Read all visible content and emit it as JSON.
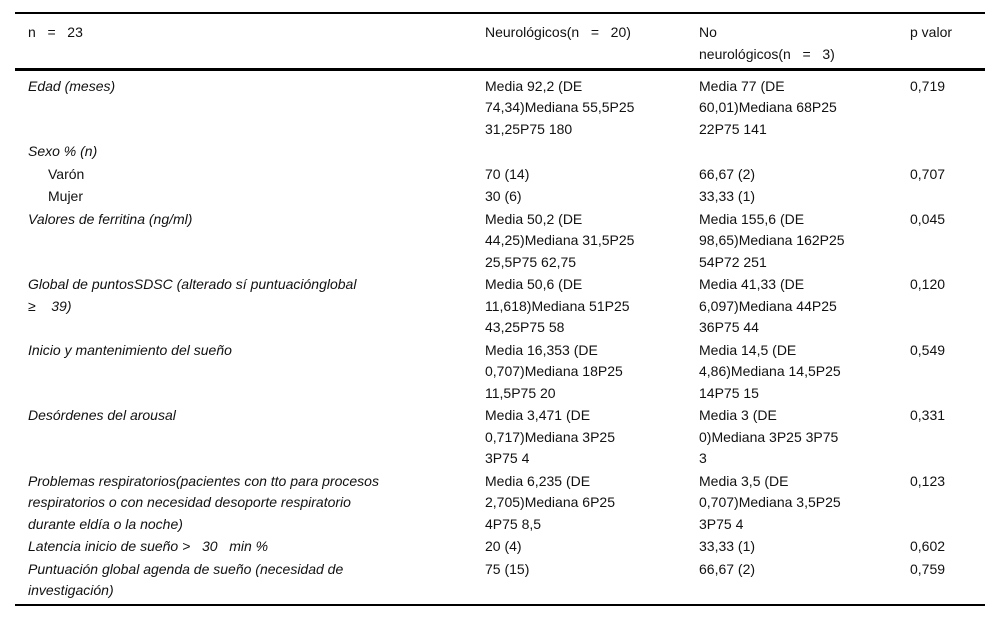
{
  "table": {
    "header": {
      "col1": "n   =   23",
      "col2": "Neurológicos(n   =   20)",
      "col3": "No\nneurológicos(n   =   3)",
      "col4": "p valor"
    },
    "rows": [
      {
        "label": "Edad (meses)",
        "indent": false,
        "neuro": "Media 92,2 (DE\n74,34)Mediana 55,5P25\n31,25P75 180",
        "no_neuro": "Media 77 (DE\n60,01)Mediana 68P25\n22P75 141",
        "p": "0,719"
      },
      {
        "label": "Sexo % (n)",
        "indent": false,
        "neuro": "",
        "no_neuro": "",
        "p": ""
      },
      {
        "label": "Varón",
        "indent": true,
        "neuro": "70 (14)",
        "no_neuro": "66,67 (2)",
        "p": "0,707"
      },
      {
        "label": "Mujer",
        "indent": true,
        "neuro": "30 (6)",
        "no_neuro": "33,33 (1)",
        "p": ""
      },
      {
        "label": "Valores de ferritina (ng/ml)",
        "indent": false,
        "neuro": "Media 50,2 (DE\n44,25)Mediana 31,5P25\n25,5P75 62,75",
        "no_neuro": "Media 155,6 (DE\n98,65)Mediana 162P25\n54P72 251",
        "p": "0,045"
      },
      {
        "label": "Global de puntosSDSC (alterado sí puntuaciónglobal\n≥    39)",
        "indent": false,
        "neuro": "Media 50,6 (DE\n11,618)Mediana 51P25\n43,25P75 58",
        "no_neuro": "Media 41,33 (DE\n6,097)Mediana 44P25\n36P75 44",
        "p": "0,120"
      },
      {
        "label": "Inicio y mantenimiento del sueño",
        "indent": false,
        "neuro": "Media 16,353 (DE\n0,707)Mediana 18P25\n11,5P75 20",
        "no_neuro": "Media 14,5 (DE\n4,86)Mediana 14,5P25\n14P75 15",
        "p": "0,549"
      },
      {
        "label": "Desórdenes del arousal",
        "indent": false,
        "neuro": "Media 3,471 (DE\n0,717)Mediana 3P25\n3P75 4",
        "no_neuro": "Media 3 (DE\n0)Mediana 3P25 3P75\n3",
        "p": "0,331"
      },
      {
        "label": "Problemas respiratorios(pacientes con tto para procesos\nrespiratorios o con necesidad desoporte respiratorio\ndurante eldía o la noche)",
        "indent": false,
        "neuro": "Media 6,235 (DE\n2,705)Mediana 6P25\n4P75 8,5",
        "no_neuro": "Media 3,5 (DE\n0,707)Mediana 3,5P25\n3P75 4",
        "p": "0,123"
      },
      {
        "label": "Latencia inicio de sueño >   30   min %",
        "indent": false,
        "neuro": "20 (4)",
        "no_neuro": "33,33 (1)",
        "p": "0,602"
      },
      {
        "label": "Puntuación global agenda de sueño (necesidad de\ninvestigación)",
        "indent": false,
        "neuro": "75 (15)",
        "no_neuro": "66,67 (2)",
        "p": "0,759"
      }
    ]
  }
}
